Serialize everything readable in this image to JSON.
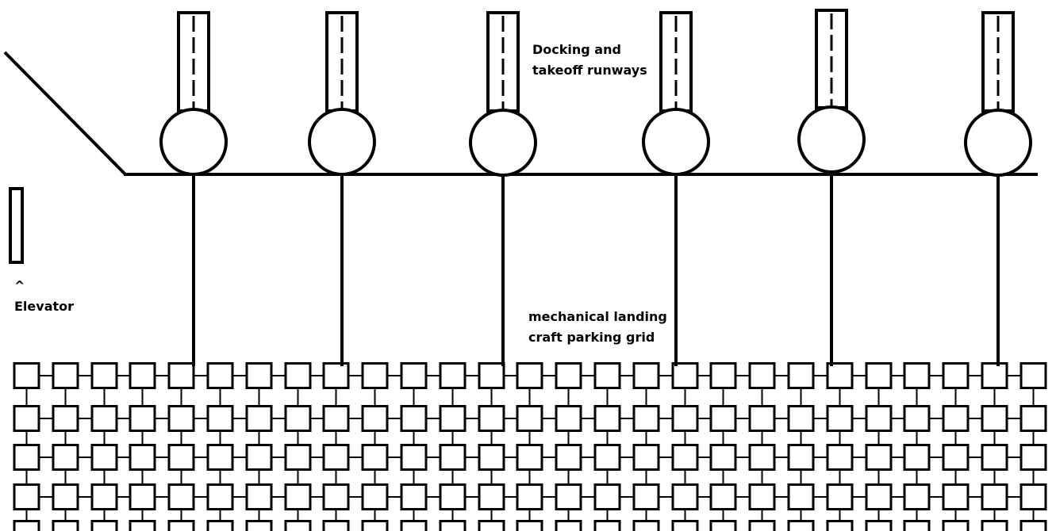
{
  "labels": {
    "runways_line1": "Docking and",
    "runways_line2": "takeoff runways",
    "grid_line1": "mechanical landing",
    "grid_line2": "craft parking grid",
    "elevator_caret": "^",
    "elevator": "Elevator"
  },
  "diagram": {
    "runway_count": 6,
    "grid_rows_visible": 4,
    "grid_columns_visible": 27,
    "stroke_color": "#000000",
    "background_color": "#ffffff"
  }
}
